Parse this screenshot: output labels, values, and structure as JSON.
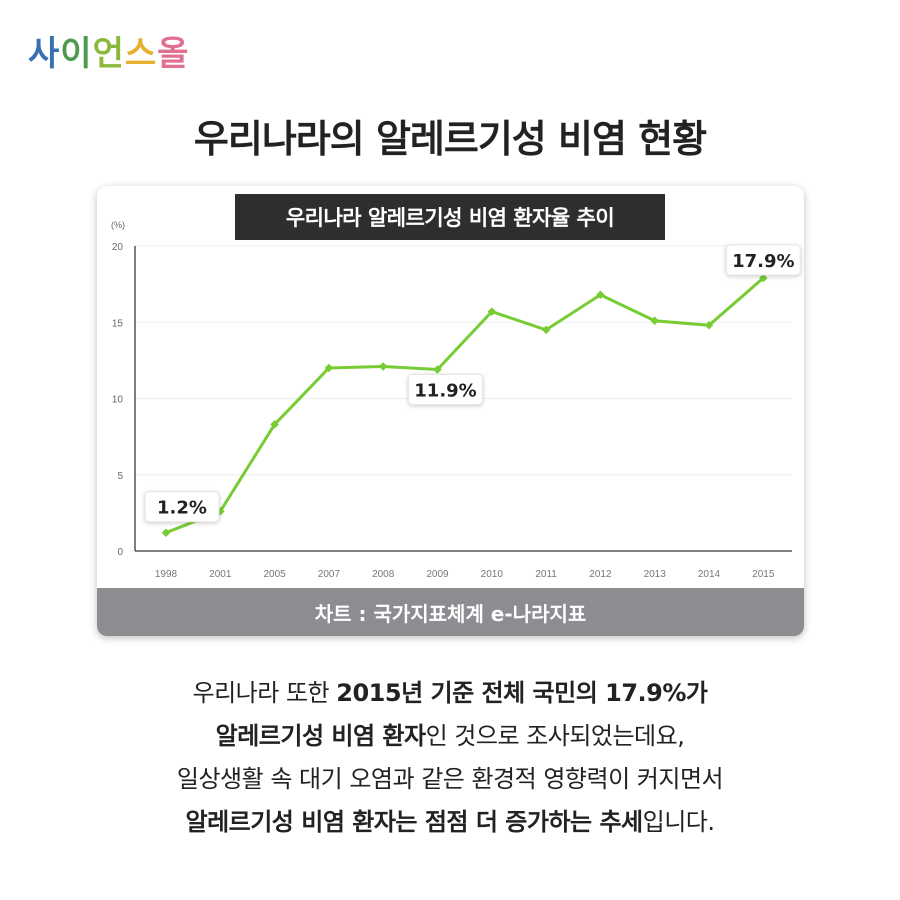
{
  "logo": {
    "chars": [
      "사",
      "이",
      "언",
      "스",
      "올"
    ],
    "colors": [
      "#3a6fb0",
      "#4a9a50",
      "#8ab83a",
      "#e8b030",
      "#e07090"
    ]
  },
  "title": "우리나라의 알레르기성 비염 현황",
  "card": {
    "source": "차트 : 국가지표체계 e-나라지표"
  },
  "chart_data": {
    "type": "line",
    "title": "우리나라 알레르기성 비염 환자율 추이",
    "ylabel": "(%)",
    "ylim": [
      0,
      20
    ],
    "yticks": [
      "0",
      "5",
      "10",
      "15",
      "20"
    ],
    "categories": [
      "1998",
      "2001",
      "2005",
      "2007",
      "2008",
      "2009",
      "2010",
      "2011",
      "2012",
      "2013",
      "2014",
      "2015"
    ],
    "values": [
      1.2,
      2.6,
      8.3,
      12.0,
      12.1,
      11.9,
      15.7,
      14.5,
      16.8,
      15.1,
      14.8,
      17.9
    ],
    "annotations": [
      {
        "category": "1998",
        "label": "1.2%"
      },
      {
        "category": "2009",
        "label": "11.9%"
      },
      {
        "category": "2015",
        "label": "17.9%"
      }
    ],
    "line_color": "#77cc33",
    "grid": true
  },
  "body": {
    "l1a": "우리나라 또한 ",
    "l1b": "2015년 기준 전체 국민의 17.9%가",
    "l2a": "알레르기성 비염 환자",
    "l2b": "인 것으로 조사되었는데요,",
    "l3": "일상생활 속 대기 오염과 같은 환경적 영향력이 커지면서",
    "l4a": "알레르기성 비염 환자는 점점 더 증가하는 추세",
    "l4b": "입니다."
  }
}
